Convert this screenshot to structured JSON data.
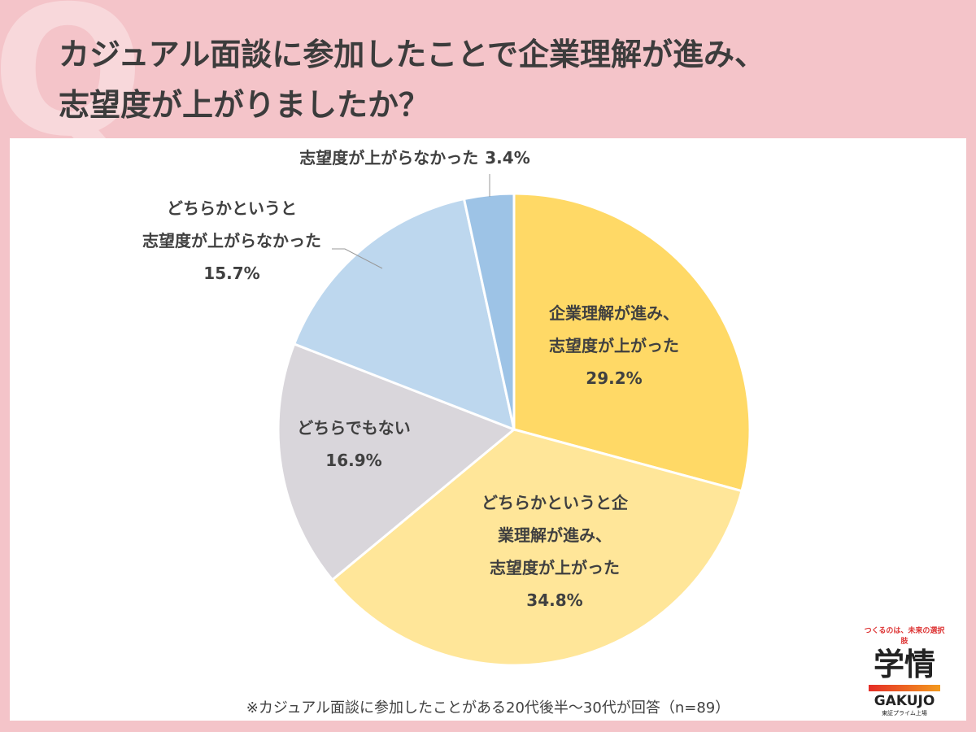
{
  "title": "カジュアル面談に参加したことで企業理解が進み、\n志望度が上がりましたか？",
  "chart_data": {
    "type": "pie",
    "categories": [
      "企業理解が進み、\n志望度が上がった",
      "どちらかというと企\n業理解が進み、\n志望度が上がった",
      "どちらでもない",
      "どちらかというと\n志望度が上がらなかった",
      "志望度が上がらなかった"
    ],
    "values": [
      29.2,
      34.8,
      16.9,
      15.7,
      3.4
    ],
    "value_labels": [
      "29.2%",
      "34.8%",
      "16.9%",
      "15.7%",
      "3.4%"
    ],
    "colors": [
      "#ffd966",
      "#ffe699",
      "#d9d6db",
      "#bdd7ee",
      "#9dc3e6"
    ]
  },
  "footnote": "※カジュアル面談に参加したことがある20代後半～30代が回答（n=89）",
  "logo": {
    "tagline": "つくるのは、未来の選択肢",
    "name": "学情",
    "roman": "GAKUJO",
    "listing": "東証プライム上場"
  }
}
